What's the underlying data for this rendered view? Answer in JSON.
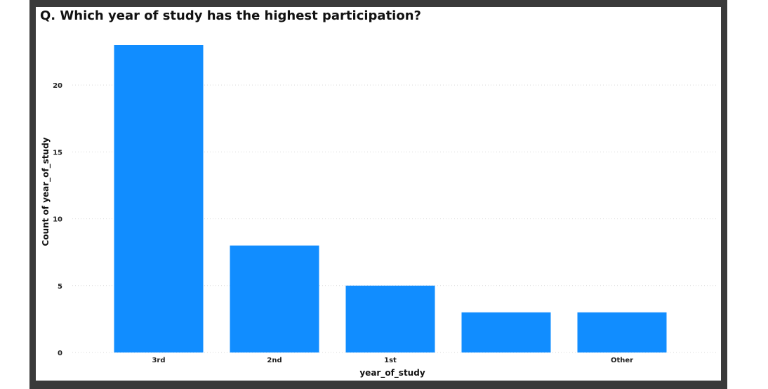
{
  "chart_data": {
    "type": "bar",
    "title": "Q. Which year of study has the highest participation?",
    "categories": [
      "3rd",
      "2nd",
      "1st",
      "",
      "Other"
    ],
    "values": [
      23,
      8,
      5,
      3,
      3
    ],
    "xlabel": "year_of_study",
    "ylabel": "Count of year_of_study",
    "ylim": [
      0,
      23
    ],
    "yticks": [
      0,
      5,
      10,
      15,
      20
    ],
    "grid": true,
    "bar_color": "#118DFF"
  }
}
